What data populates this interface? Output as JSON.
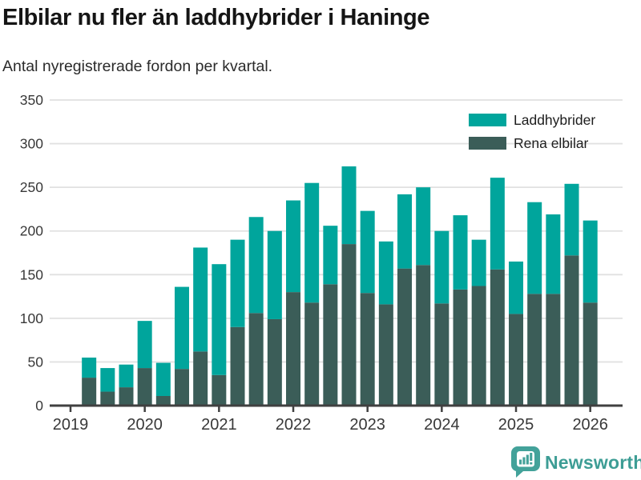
{
  "header": {
    "title": "Elbilar nu fler än laddhybrider i Haninge",
    "subtitle": "Antal nyregistrerade fordon per kvartal."
  },
  "chart_data": {
    "type": "bar",
    "stacked": true,
    "title": "Elbilar nu fler än laddhybrider i Haninge",
    "subtitle": "Antal nyregistrerade fordon per kvartal.",
    "categories": [
      "2019Q2",
      "2019Q3",
      "2019Q4",
      "2020Q1",
      "2020Q2",
      "2020Q3",
      "2020Q4",
      "2021Q1",
      "2021Q2",
      "2021Q3",
      "2021Q4",
      "2022Q1",
      "2022Q2",
      "2022Q3",
      "2022Q4",
      "2023Q1",
      "2023Q2",
      "2023Q3",
      "2023Q4",
      "2024Q1",
      "2024Q2",
      "2024Q3",
      "2024Q4",
      "2025Q1",
      "2025Q2",
      "2025Q3",
      "2025Q4",
      "2026Q1"
    ],
    "series": [
      {
        "name": "Rena elbilar",
        "color": "#3b5d58",
        "values": [
          32,
          16,
          21,
          43,
          11,
          42,
          62,
          35,
          90,
          106,
          99,
          130,
          118,
          139,
          185,
          129,
          116,
          157,
          161,
          117,
          133,
          137,
          156,
          105,
          128,
          128,
          172,
          118
        ]
      },
      {
        "name": "Laddhybrider",
        "color": "#00a59c",
        "values": [
          23,
          27,
          26,
          54,
          38,
          94,
          119,
          127,
          100,
          110,
          101,
          105,
          137,
          67,
          89,
          94,
          72,
          85,
          89,
          83,
          85,
          53,
          105,
          60,
          105,
          91,
          82,
          94
        ]
      }
    ],
    "legend": [
      {
        "label": "Laddhybrider",
        "color": "#00a59c"
      },
      {
        "label": "Rena elbilar",
        "color": "#3b5d58"
      }
    ],
    "legend_position": "top-right",
    "grid": true,
    "ylim": [
      0,
      350
    ],
    "y_ticks": [
      0,
      50,
      100,
      150,
      200,
      250,
      300,
      350
    ],
    "x_tick_labels": [
      "2019",
      "2020",
      "2021",
      "2022",
      "2023",
      "2024",
      "2025",
      "2026"
    ],
    "xlabel": "",
    "ylabel": ""
  },
  "style": {
    "gridline_color": "#e1e1e1",
    "axis_color": "#404040",
    "tick_label_color": "#383838"
  },
  "footer": {
    "brand": "Newsworthy",
    "brand_color": "#3d9d95"
  }
}
